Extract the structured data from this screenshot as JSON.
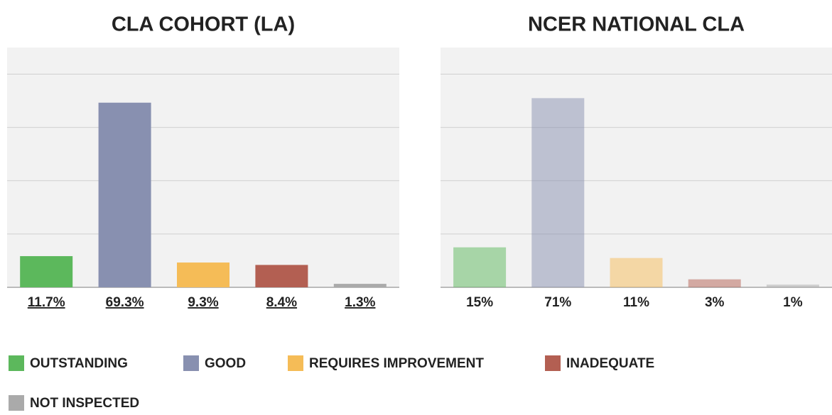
{
  "chart_data": [
    {
      "type": "bar",
      "title": "CLA COHORT (LA)",
      "values": [
        11.7,
        69.3,
        9.3,
        8.4,
        1.3
      ],
      "value_labels": [
        "11.7%",
        "69.3%",
        "9.3%",
        "8.4%",
        "1.3%"
      ],
      "underline_labels": true,
      "opacity": 1,
      "ylim": [
        0,
        90
      ],
      "yticks": [
        0,
        20,
        40,
        60,
        80
      ],
      "grid": true
    },
    {
      "type": "bar",
      "title": "NCER NATIONAL CLA",
      "values": [
        15,
        71,
        11,
        3,
        1
      ],
      "value_labels": [
        "15%",
        "71%",
        "11%",
        "3%",
        "1%"
      ],
      "underline_labels": false,
      "opacity": 0.5,
      "ylim": [
        0,
        90
      ],
      "yticks": [
        0,
        20,
        40,
        60,
        80
      ],
      "grid": true
    }
  ],
  "legend": {
    "items": [
      {
        "label": "OUTSTANDING",
        "color": "#5cb85c"
      },
      {
        "label": "GOOD",
        "color": "#8890b0"
      },
      {
        "label": "REQUIRES IMPROVEMENT",
        "color": "#f5bc57"
      },
      {
        "label": "INADEQUATE",
        "color": "#b35f52"
      },
      {
        "label": "NOT INSPECTED",
        "color": "#aaaaaa"
      }
    ]
  }
}
